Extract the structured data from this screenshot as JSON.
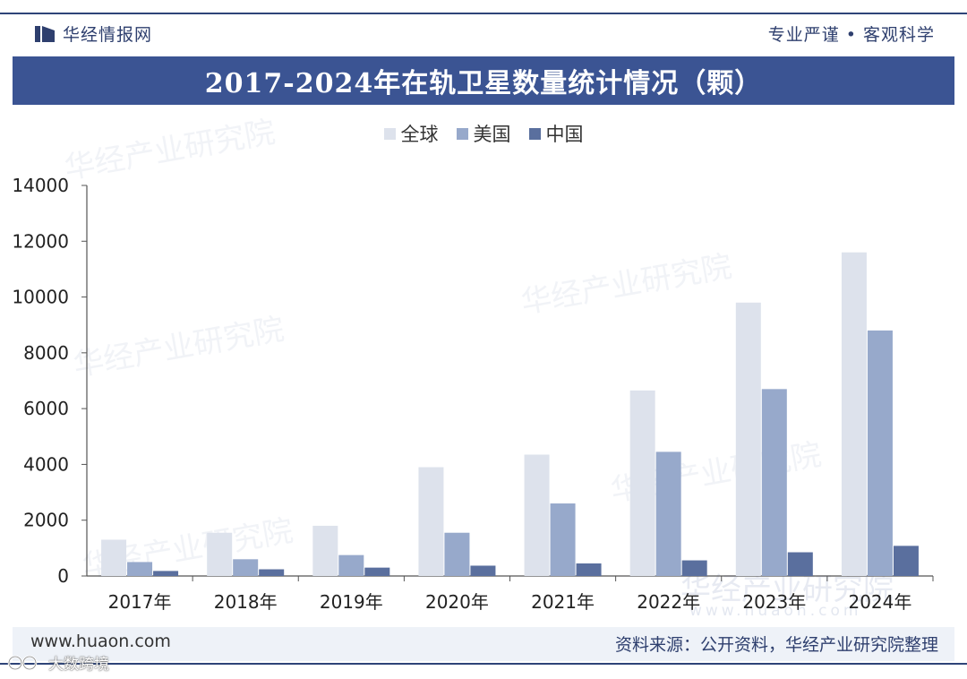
{
  "header": {
    "brand": "华经情报网",
    "slogan": "专业严谨 • 客观科学"
  },
  "title": "2017-2024年在轨卫星数量统计情况（颗）",
  "watermark": "华经产业研究院",
  "watermark_url": "www.huaon.com",
  "footer": {
    "website": "www.huaon.com",
    "source": "资料来源：公开资料，华经产业研究院整理",
    "corner_logo": "大数跨境"
  },
  "colors": {
    "accent": "#3b5493",
    "global": "#dde2ec",
    "usa": "#97a9cb",
    "china": "#5a6f9e"
  },
  "chart_data": {
    "type": "bar",
    "title": "2017-2024年在轨卫星数量统计情况（颗）",
    "categories": [
      "2017年",
      "2018年",
      "2019年",
      "2020年",
      "2021年",
      "2022年",
      "2023年",
      "2024年"
    ],
    "series": [
      {
        "name": "全球",
        "color": "#dde2ec",
        "values": [
          1300,
          1550,
          1800,
          3900,
          4350,
          6650,
          9800,
          11600
        ]
      },
      {
        "name": "美国",
        "color": "#97a9cb",
        "values": [
          500,
          600,
          750,
          1550,
          2600,
          4450,
          6700,
          8800
        ]
      },
      {
        "name": "中国",
        "color": "#5a6f9e",
        "values": [
          180,
          240,
          300,
          370,
          450,
          560,
          850,
          1080
        ]
      }
    ],
    "yticks": [
      0,
      2000,
      4000,
      6000,
      8000,
      10000,
      12000,
      14000
    ],
    "ylim": [
      0,
      14000
    ],
    "xlabel": "",
    "ylabel": "",
    "legend": "top-center",
    "grid": false
  }
}
